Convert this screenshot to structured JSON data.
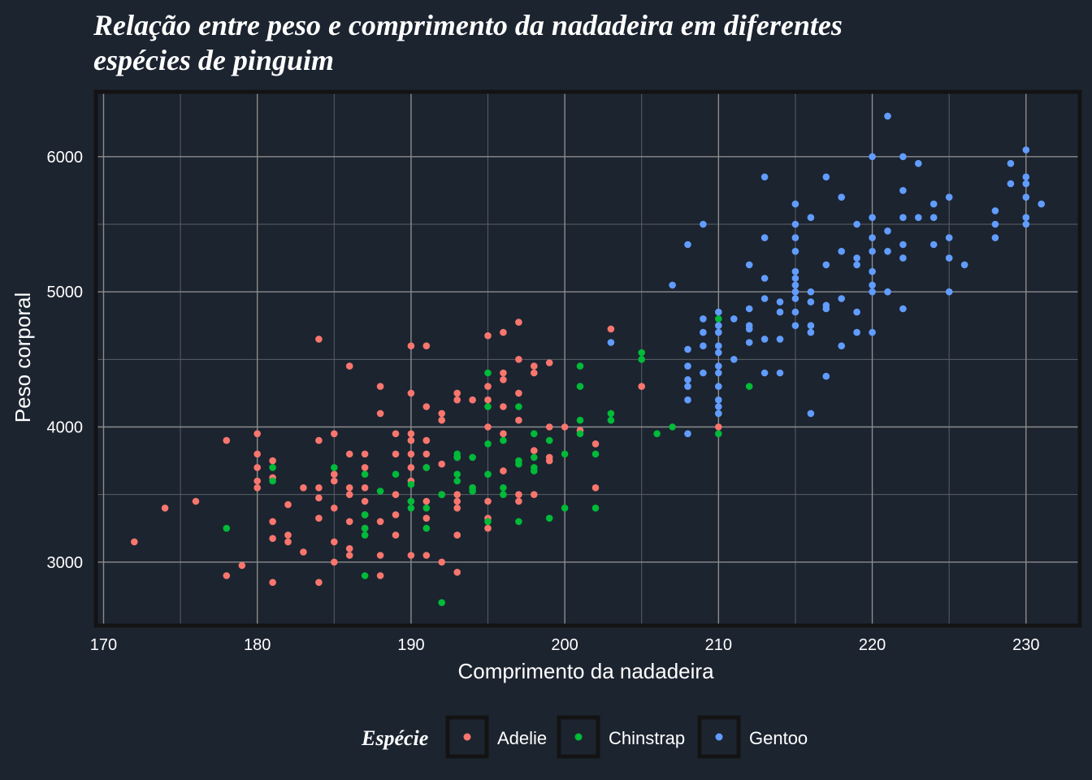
{
  "colors": {
    "background": "#1c2430",
    "panel_border": "#131313",
    "grid_major": "#8c8c8c",
    "grid_minor": "#5a5f66",
    "Adelie": "#f8766d",
    "Chinstrap": "#00ba38",
    "Gentoo": "#619cff"
  },
  "chart_data": {
    "type": "scatter",
    "title_lines": [
      "Relação entre peso e comprimento da nadadeira em diferentes",
      "espécies de pinguim"
    ],
    "xlabel": "Comprimento da nadadeira",
    "ylabel": "Peso corporal",
    "xlim": [
      169.5,
      233.5
    ],
    "ylim": [
      2530,
      6480
    ],
    "x_ticks": [
      170,
      180,
      190,
      200,
      210,
      220,
      230
    ],
    "y_ticks": [
      3000,
      4000,
      5000,
      6000
    ],
    "grid": true,
    "legend": {
      "title": "Espécie",
      "position": "bottom"
    },
    "series": [
      {
        "name": "Adelie",
        "points": [
          [
            172,
            3150
          ],
          [
            174,
            3400
          ],
          [
            176,
            3450
          ],
          [
            178,
            3900
          ],
          [
            178,
            2900
          ],
          [
            179,
            2975
          ],
          [
            180,
            3950
          ],
          [
            180,
            3800
          ],
          [
            180,
            3700
          ],
          [
            180,
            3600
          ],
          [
            180,
            3550
          ],
          [
            181,
            3750
          ],
          [
            181,
            3625
          ],
          [
            181,
            3300
          ],
          [
            181,
            3175
          ],
          [
            181,
            2850
          ],
          [
            182,
            3425
          ],
          [
            182,
            3200
          ],
          [
            182,
            3150
          ],
          [
            183,
            3550
          ],
          [
            183,
            3075
          ],
          [
            184,
            4650
          ],
          [
            184,
            3900
          ],
          [
            184,
            3550
          ],
          [
            184,
            3475
          ],
          [
            184,
            3325
          ],
          [
            184,
            2850
          ],
          [
            185,
            3950
          ],
          [
            185,
            3650
          ],
          [
            185,
            3600
          ],
          [
            185,
            3400
          ],
          [
            185,
            3150
          ],
          [
            185,
            3000
          ],
          [
            186,
            4450
          ],
          [
            186,
            3800
          ],
          [
            186,
            3550
          ],
          [
            186,
            3500
          ],
          [
            186,
            3300
          ],
          [
            186,
            3100
          ],
          [
            186,
            3050
          ],
          [
            187,
            3800
          ],
          [
            187,
            3700
          ],
          [
            187,
            3550
          ],
          [
            187,
            3450
          ],
          [
            187,
            3350
          ],
          [
            187,
            3250
          ],
          [
            188,
            4300
          ],
          [
            188,
            4100
          ],
          [
            188,
            3300
          ],
          [
            188,
            3050
          ],
          [
            188,
            2900
          ],
          [
            189,
            3950
          ],
          [
            189,
            3800
          ],
          [
            189,
            3500
          ],
          [
            189,
            3350
          ],
          [
            189,
            3200
          ],
          [
            190,
            4600
          ],
          [
            190,
            4250
          ],
          [
            190,
            3950
          ],
          [
            190,
            3900
          ],
          [
            190,
            3800
          ],
          [
            190,
            3700
          ],
          [
            190,
            3600
          ],
          [
            190,
            3450
          ],
          [
            190,
            3050
          ],
          [
            191,
            4600
          ],
          [
            191,
            4150
          ],
          [
            191,
            3900
          ],
          [
            191,
            3800
          ],
          [
            191,
            3700
          ],
          [
            191,
            3450
          ],
          [
            191,
            3325
          ],
          [
            191,
            3050
          ],
          [
            192,
            4100
          ],
          [
            192,
            4050
          ],
          [
            192,
            3725
          ],
          [
            192,
            3500
          ],
          [
            192,
            3000
          ],
          [
            193,
            4250
          ],
          [
            193,
            4200
          ],
          [
            193,
            3775
          ],
          [
            193,
            3500
          ],
          [
            193,
            3450
          ],
          [
            193,
            3400
          ],
          [
            193,
            3200
          ],
          [
            193,
            2925
          ],
          [
            194,
            4200
          ],
          [
            194,
            3550
          ],
          [
            195,
            4675
          ],
          [
            195,
            4300
          ],
          [
            195,
            4200
          ],
          [
            195,
            4000
          ],
          [
            195,
            3450
          ],
          [
            195,
            3325
          ],
          [
            195,
            3250
          ],
          [
            196,
            4700
          ],
          [
            196,
            4400
          ],
          [
            196,
            4350
          ],
          [
            196,
            4150
          ],
          [
            196,
            3950
          ],
          [
            196,
            3675
          ],
          [
            197,
            4775
          ],
          [
            197,
            4500
          ],
          [
            197,
            4250
          ],
          [
            197,
            4050
          ],
          [
            197,
            3500
          ],
          [
            197,
            3450
          ],
          [
            198,
            4450
          ],
          [
            198,
            4400
          ],
          [
            198,
            3825
          ],
          [
            198,
            3500
          ],
          [
            199,
            4475
          ],
          [
            199,
            3775
          ],
          [
            199,
            3750
          ],
          [
            199,
            4000
          ],
          [
            200,
            4000
          ],
          [
            201,
            3975
          ],
          [
            202,
            3875
          ],
          [
            202,
            3550
          ],
          [
            203,
            4725
          ],
          [
            205,
            4300
          ],
          [
            210,
            4000
          ]
        ]
      },
      {
        "name": "Chinstrap",
        "points": [
          [
            178,
            3250
          ],
          [
            181,
            3700
          ],
          [
            181,
            3600
          ],
          [
            185,
            3700
          ],
          [
            187,
            3650
          ],
          [
            187,
            3350
          ],
          [
            187,
            3250
          ],
          [
            187,
            3200
          ],
          [
            187,
            2900
          ],
          [
            188,
            3525
          ],
          [
            189,
            3650
          ],
          [
            190,
            3575
          ],
          [
            190,
            3450
          ],
          [
            190,
            3400
          ],
          [
            191,
            3700
          ],
          [
            191,
            3400
          ],
          [
            191,
            3250
          ],
          [
            192,
            3500
          ],
          [
            192,
            2700
          ],
          [
            193,
            3800
          ],
          [
            193,
            3775
          ],
          [
            193,
            3650
          ],
          [
            193,
            3600
          ],
          [
            194,
            3775
          ],
          [
            194,
            3550
          ],
          [
            194,
            3525
          ],
          [
            195,
            4400
          ],
          [
            195,
            4150
          ],
          [
            195,
            3875
          ],
          [
            195,
            3650
          ],
          [
            195,
            3300
          ],
          [
            196,
            3900
          ],
          [
            196,
            3550
          ],
          [
            196,
            3500
          ],
          [
            197,
            4150
          ],
          [
            197,
            3750
          ],
          [
            197,
            3725
          ],
          [
            197,
            3300
          ],
          [
            198,
            3950
          ],
          [
            198,
            3775
          ],
          [
            198,
            3700
          ],
          [
            198,
            3675
          ],
          [
            199,
            3900
          ],
          [
            199,
            3325
          ],
          [
            200,
            3800
          ],
          [
            200,
            3400
          ],
          [
            201,
            4450
          ],
          [
            201,
            4300
          ],
          [
            201,
            4050
          ],
          [
            201,
            3950
          ],
          [
            202,
            3800
          ],
          [
            202,
            3400
          ],
          [
            203,
            4100
          ],
          [
            203,
            4050
          ],
          [
            205,
            4550
          ],
          [
            205,
            4500
          ],
          [
            206,
            3950
          ],
          [
            207,
            4000
          ],
          [
            210,
            4800
          ],
          [
            210,
            4100
          ],
          [
            210,
            3950
          ],
          [
            212,
            4300
          ]
        ]
      },
      {
        "name": "Gentoo",
        "points": [
          [
            203,
            4625
          ],
          [
            207,
            5050
          ],
          [
            208,
            5350
          ],
          [
            208,
            4575
          ],
          [
            208,
            4450
          ],
          [
            208,
            4350
          ],
          [
            208,
            4300
          ],
          [
            208,
            4200
          ],
          [
            208,
            3950
          ],
          [
            209,
            5500
          ],
          [
            209,
            4800
          ],
          [
            209,
            4700
          ],
          [
            209,
            4600
          ],
          [
            209,
            4400
          ],
          [
            210,
            4850
          ],
          [
            210,
            4750
          ],
          [
            210,
            4700
          ],
          [
            210,
            4600
          ],
          [
            210,
            4550
          ],
          [
            210,
            4450
          ],
          [
            210,
            4400
          ],
          [
            210,
            4300
          ],
          [
            210,
            4200
          ],
          [
            210,
            4150
          ],
          [
            210,
            4100
          ],
          [
            211,
            4800
          ],
          [
            211,
            4500
          ],
          [
            212,
            5200
          ],
          [
            212,
            4875
          ],
          [
            212,
            4750
          ],
          [
            212,
            4725
          ],
          [
            212,
            4625
          ],
          [
            213,
            5850
          ],
          [
            213,
            5400
          ],
          [
            213,
            5100
          ],
          [
            213,
            4950
          ],
          [
            213,
            4650
          ],
          [
            213,
            4400
          ],
          [
            214,
            4925
          ],
          [
            214,
            4850
          ],
          [
            214,
            4650
          ],
          [
            214,
            4400
          ],
          [
            215,
            5650
          ],
          [
            215,
            5500
          ],
          [
            215,
            5400
          ],
          [
            215,
            5300
          ],
          [
            215,
            5150
          ],
          [
            215,
            5100
          ],
          [
            215,
            5050
          ],
          [
            215,
            5000
          ],
          [
            215,
            4950
          ],
          [
            215,
            4850
          ],
          [
            215,
            4750
          ],
          [
            216,
            5550
          ],
          [
            216,
            5000
          ],
          [
            216,
            4925
          ],
          [
            216,
            4750
          ],
          [
            216,
            4700
          ],
          [
            216,
            4100
          ],
          [
            217,
            5850
          ],
          [
            217,
            5200
          ],
          [
            217,
            4900
          ],
          [
            217,
            4875
          ],
          [
            217,
            4375
          ],
          [
            218,
            5700
          ],
          [
            218,
            5300
          ],
          [
            218,
            4950
          ],
          [
            218,
            4600
          ],
          [
            219,
            5500
          ],
          [
            219,
            5250
          ],
          [
            219,
            5200
          ],
          [
            219,
            4850
          ],
          [
            219,
            4700
          ],
          [
            220,
            6000
          ],
          [
            220,
            5550
          ],
          [
            220,
            5400
          ],
          [
            220,
            5300
          ],
          [
            220,
            5150
          ],
          [
            220,
            5050
          ],
          [
            220,
            5000
          ],
          [
            220,
            4700
          ],
          [
            221,
            6300
          ],
          [
            221,
            5450
          ],
          [
            221,
            5300
          ],
          [
            221,
            5000
          ],
          [
            222,
            6000
          ],
          [
            222,
            5750
          ],
          [
            222,
            5550
          ],
          [
            222,
            5350
          ],
          [
            222,
            5250
          ],
          [
            222,
            4875
          ],
          [
            223,
            5950
          ],
          [
            223,
            5550
          ],
          [
            224,
            5650
          ],
          [
            224,
            5550
          ],
          [
            224,
            5350
          ],
          [
            225,
            5700
          ],
          [
            225,
            5400
          ],
          [
            225,
            5250
          ],
          [
            225,
            5000
          ],
          [
            226,
            5200
          ],
          [
            228,
            5600
          ],
          [
            228,
            5500
          ],
          [
            228,
            5400
          ],
          [
            229,
            5950
          ],
          [
            229,
            5800
          ],
          [
            230,
            6050
          ],
          [
            230,
            5850
          ],
          [
            230,
            5800
          ],
          [
            230,
            5700
          ],
          [
            230,
            5550
          ],
          [
            230,
            5500
          ],
          [
            231,
            5650
          ]
        ]
      }
    ]
  }
}
